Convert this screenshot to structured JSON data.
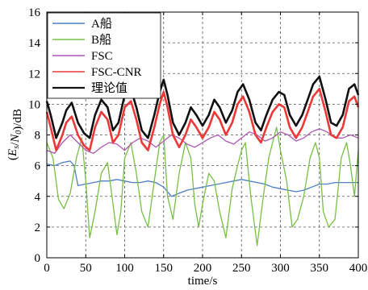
{
  "chart_data": {
    "type": "line",
    "title": "",
    "xlabel": "time/s",
    "ylabel": "(Es/N0)/dB",
    "xlim": [
      0,
      400
    ],
    "ylim": [
      0,
      16
    ],
    "x_ticks": [
      "0",
      "50",
      "100",
      "150",
      "200",
      "250",
      "300",
      "350",
      "400"
    ],
    "y_ticks": [
      "0",
      "2",
      "4",
      "6",
      "8",
      "10",
      "12",
      "14",
      "16"
    ],
    "grid": true,
    "legend_position": "top-left",
    "series": [
      {
        "name": "A船",
        "color": "#4f7fc8",
        "x": [
          0,
          10,
          20,
          30,
          35,
          40,
          50,
          60,
          70,
          80,
          90,
          100,
          110,
          120,
          130,
          140,
          150,
          160,
          170,
          180,
          190,
          200,
          210,
          220,
          230,
          240,
          250,
          260,
          270,
          280,
          290,
          300,
          310,
          320,
          330,
          340,
          350,
          360,
          370,
          380,
          390,
          400
        ],
        "y": [
          6.1,
          6.0,
          6.2,
          6.3,
          6.0,
          4.7,
          4.8,
          4.9,
          5.0,
          5.0,
          5.1,
          5.0,
          4.9,
          4.9,
          5.0,
          4.9,
          4.6,
          4.0,
          4.2,
          4.4,
          4.5,
          4.6,
          4.7,
          4.8,
          4.9,
          5.0,
          5.1,
          5.0,
          4.9,
          4.8,
          4.6,
          4.5,
          4.4,
          4.3,
          4.4,
          4.6,
          4.8,
          4.8,
          4.9,
          4.9,
          4.9,
          4.9
        ]
      },
      {
        "name": "B船",
        "color": "#77c043",
        "x": [
          0,
          8,
          15,
          22,
          30,
          38,
          45,
          50,
          55,
          62,
          70,
          78,
          85,
          90,
          95,
          100,
          108,
          115,
          122,
          130,
          138,
          145,
          150,
          155,
          162,
          170,
          178,
          185,
          190,
          195,
          200,
          208,
          215,
          222,
          230,
          238,
          245,
          250,
          255,
          262,
          270,
          278,
          285,
          290,
          295,
          300,
          308,
          315,
          322,
          330,
          338,
          345,
          350,
          355,
          362,
          370,
          378,
          385,
          390,
          395,
          400
        ],
        "y": [
          7.5,
          6.5,
          3.8,
          3.2,
          4.2,
          6.5,
          7.8,
          5.0,
          1.3,
          3.0,
          5.5,
          6.2,
          3.5,
          1.5,
          3.0,
          6.5,
          7.5,
          5.5,
          3.0,
          2.0,
          5.0,
          7.5,
          8.0,
          4.0,
          2.5,
          5.5,
          7.5,
          6.5,
          3.5,
          2.0,
          3.5,
          5.5,
          5.0,
          3.0,
          1.3,
          4.5,
          6.0,
          7.0,
          7.5,
          4.0,
          0.8,
          4.0,
          6.5,
          7.5,
          8.5,
          7.0,
          5.0,
          2.0,
          2.5,
          4.0,
          6.5,
          7.5,
          6.5,
          3.0,
          2.0,
          2.5,
          6.5,
          7.5,
          6.0,
          4.0,
          7.0
        ]
      },
      {
        "name": "FSC",
        "color": "#b055b8",
        "x": [
          0,
          10,
          20,
          30,
          40,
          50,
          60,
          70,
          80,
          90,
          100,
          110,
          120,
          130,
          140,
          150,
          160,
          170,
          180,
          190,
          200,
          210,
          220,
          230,
          240,
          250,
          260,
          270,
          280,
          290,
          300,
          310,
          320,
          330,
          340,
          350,
          360,
          370,
          380,
          390,
          400
        ],
        "y": [
          7.0,
          6.8,
          7.5,
          8.0,
          7.5,
          7.0,
          6.8,
          7.2,
          7.5,
          7.4,
          7.0,
          7.5,
          7.8,
          7.6,
          7.2,
          7.6,
          8.0,
          7.8,
          7.4,
          7.2,
          7.5,
          7.8,
          8.0,
          7.6,
          7.4,
          7.8,
          8.2,
          8.0,
          7.6,
          7.8,
          8.2,
          8.0,
          7.6,
          7.8,
          8.2,
          8.4,
          8.2,
          7.8,
          7.8,
          8.0,
          7.8
        ]
      },
      {
        "name": "FSC-CNR",
        "color": "#ee3838",
        "x": [
          0,
          5,
          12,
          20,
          25,
          32,
          40,
          48,
          55,
          62,
          70,
          78,
          85,
          92,
          100,
          108,
          115,
          122,
          130,
          138,
          145,
          150,
          155,
          162,
          170,
          178,
          185,
          192,
          200,
          208,
          215,
          222,
          230,
          238,
          245,
          252,
          260,
          268,
          275,
          282,
          290,
          298,
          305,
          312,
          320,
          328,
          335,
          342,
          350,
          358,
          365,
          372,
          380,
          388,
          395,
          400
        ],
        "y": [
          9.5,
          8.5,
          7.0,
          8.0,
          8.8,
          9.2,
          8.0,
          7.3,
          7.0,
          8.5,
          9.5,
          9.0,
          7.5,
          8.0,
          9.8,
          10.2,
          9.0,
          7.5,
          7.0,
          8.5,
          10.0,
          10.8,
          9.8,
          8.0,
          7.2,
          8.0,
          9.0,
          8.5,
          7.8,
          8.5,
          9.5,
          9.0,
          8.0,
          8.8,
          10.0,
          10.5,
          9.5,
          8.0,
          7.5,
          8.5,
          9.5,
          10.0,
          9.8,
          8.5,
          7.8,
          8.5,
          9.5,
          10.5,
          11.0,
          9.5,
          8.0,
          7.8,
          8.5,
          10.2,
          10.5,
          9.8
        ]
      },
      {
        "name": "理论值",
        "color": "#111111",
        "x": [
          0,
          5,
          12,
          20,
          25,
          32,
          40,
          48,
          55,
          62,
          70,
          78,
          85,
          92,
          100,
          108,
          115,
          122,
          130,
          138,
          145,
          150,
          155,
          162,
          170,
          178,
          185,
          192,
          200,
          208,
          215,
          222,
          230,
          238,
          245,
          252,
          260,
          268,
          275,
          282,
          290,
          298,
          305,
          312,
          320,
          328,
          335,
          342,
          350,
          358,
          365,
          372,
          380,
          388,
          395,
          400
        ],
        "y": [
          10.2,
          9.3,
          7.8,
          8.8,
          9.6,
          10.1,
          8.8,
          8.1,
          7.8,
          9.3,
          10.3,
          9.8,
          8.3,
          8.8,
          10.6,
          11.0,
          9.8,
          8.3,
          7.8,
          9.3,
          10.8,
          11.6,
          10.6,
          8.8,
          8.0,
          8.8,
          9.8,
          9.3,
          8.6,
          9.3,
          10.3,
          9.8,
          8.8,
          9.6,
          10.8,
          11.3,
          10.3,
          8.8,
          8.3,
          9.3,
          10.3,
          10.8,
          10.6,
          9.3,
          8.6,
          9.3,
          10.3,
          11.3,
          11.8,
          10.3,
          8.8,
          8.6,
          9.3,
          11.0,
          11.3,
          10.6
        ]
      }
    ]
  }
}
